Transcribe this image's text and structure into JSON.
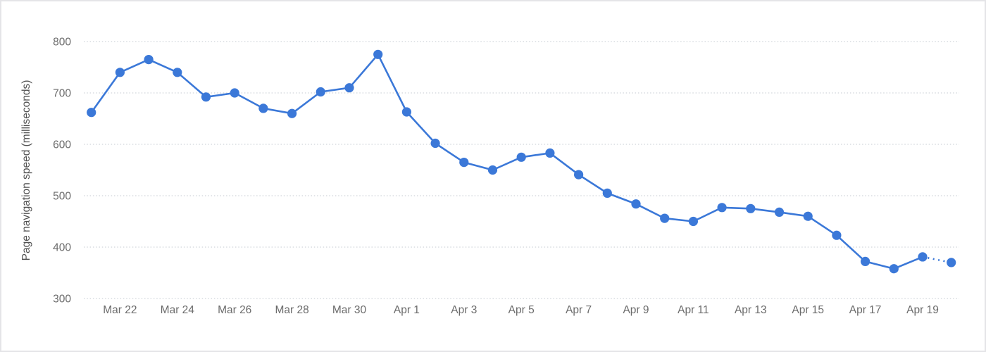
{
  "page": {
    "background_color": "#ffffff",
    "border_color": "#e4e4e7"
  },
  "chart_data": {
    "type": "line",
    "title": "",
    "xlabel": "",
    "ylabel": "Page navigation speed (milliseconds)",
    "x": [
      "Mar 21",
      "Mar 22",
      "Mar 23",
      "Mar 24",
      "Mar 25",
      "Mar 26",
      "Mar 27",
      "Mar 28",
      "Mar 29",
      "Mar 30",
      "Mar 31",
      "Apr 1",
      "Apr 2",
      "Apr 3",
      "Apr 4",
      "Apr 5",
      "Apr 6",
      "Apr 7",
      "Apr 8",
      "Apr 9",
      "Apr 10",
      "Apr 11",
      "Apr 12",
      "Apr 13",
      "Apr 14",
      "Apr 15",
      "Apr 16",
      "Apr 17",
      "Apr 18",
      "Apr 19",
      "Apr 20"
    ],
    "values": [
      662,
      740,
      765,
      740,
      692,
      700,
      670,
      660,
      702,
      710,
      775,
      663,
      602,
      565,
      550,
      575,
      583,
      541,
      505,
      484,
      456,
      450,
      477,
      475,
      468,
      460,
      423,
      372,
      358,
      381,
      370
    ],
    "x_tick_labels": [
      "Mar 22",
      "Mar 24",
      "Mar 26",
      "Mar 28",
      "Mar 30",
      "Apr 1",
      "Apr 3",
      "Apr 5",
      "Apr 7",
      "Apr 9",
      "Apr 11",
      "Apr 13",
      "Apr 15",
      "Apr 17",
      "Apr 19"
    ],
    "y_ticks": [
      300,
      400,
      500,
      600,
      700,
      800
    ],
    "ylim": [
      300,
      800
    ],
    "grid": "horizontal-dotted",
    "legend": "none",
    "last_segment_style": "dotted",
    "colors": {
      "line": "#3b78d8",
      "marker": "#3b78d8",
      "gridline": "#d8dce0",
      "tick_text": "#6b6b6b",
      "axis_title_text": "#515151"
    }
  }
}
